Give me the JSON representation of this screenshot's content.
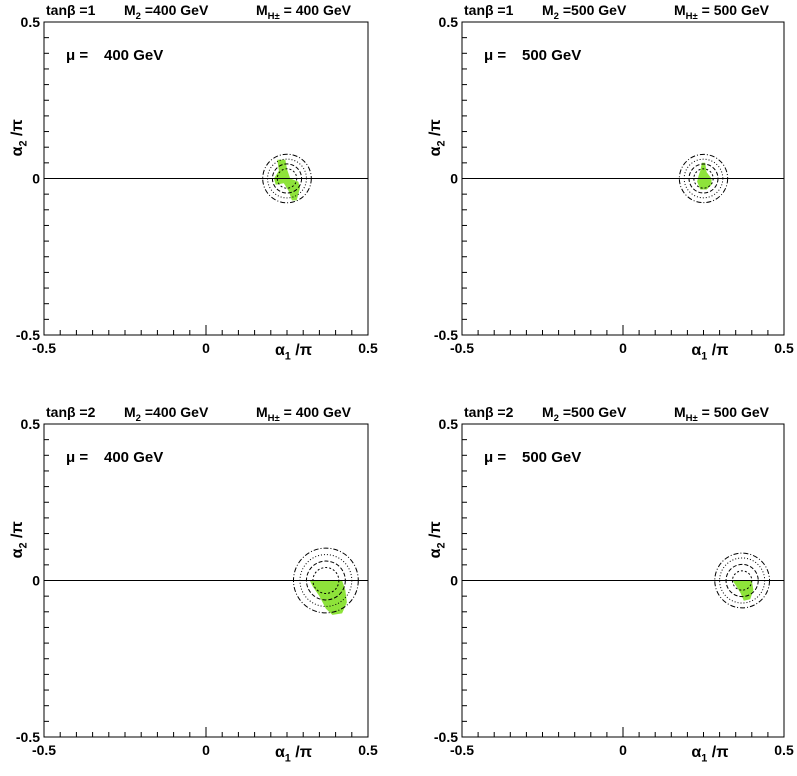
{
  "panels": [
    {
      "tanb_label": "tanβ =1",
      "m2_label": "M",
      "m2_sub": "2",
      "m2_value": " =400 GeV",
      "mh_label": "M",
      "mh_sub": "H±",
      "mh_value": " = 400 GeV",
      "mu_label": "μ =",
      "mu_value": "400 GeV",
      "xlabel_main": "α",
      "xlabel_sub": "1",
      "xlabel_rest": " /π",
      "ylabel_main": "α",
      "ylabel_sub": "2",
      "ylabel_rest": " /π",
      "xticks": [
        "-0.5",
        "0",
        "0.5"
      ],
      "yticks": [
        "0.5",
        "0",
        "-0.5"
      ]
    },
    {
      "tanb_label": "tanβ =1",
      "m2_label": "M",
      "m2_sub": "2",
      "m2_value": " =500 GeV",
      "mh_label": "M",
      "mh_sub": "H±",
      "mh_value": " = 500 GeV",
      "mu_label": "μ =",
      "mu_value": "500 GeV",
      "xlabel_main": "α",
      "xlabel_sub": "1",
      "xlabel_rest": " /π",
      "ylabel_main": "α",
      "ylabel_sub": "2",
      "ylabel_rest": " /π",
      "xticks": [
        "-0.5",
        "0",
        "0.5"
      ],
      "yticks": [
        "0.5",
        "0",
        "-0.5"
      ]
    },
    {
      "tanb_label": "tanβ =2",
      "m2_label": "M",
      "m2_sub": "2",
      "m2_value": " =400 GeV",
      "mh_label": "M",
      "mh_sub": "H±",
      "mh_value": " = 400 GeV",
      "mu_label": "μ =",
      "mu_value": "400 GeV",
      "xlabel_main": "α",
      "xlabel_sub": "1",
      "xlabel_rest": " /π",
      "ylabel_main": "α",
      "ylabel_sub": "2",
      "ylabel_rest": " /π",
      "xticks": [
        "-0.5",
        "0",
        "0.5"
      ],
      "yticks": [
        "0.5",
        "0",
        "-0.5"
      ]
    },
    {
      "tanb_label": "tanβ =2",
      "m2_label": "M",
      "m2_sub": "2",
      "m2_value": " =500 GeV",
      "mh_label": "M",
      "mh_sub": "H±",
      "mh_value": " = 500 GeV",
      "mu_label": "μ =",
      "mu_value": "500 GeV",
      "xlabel_main": "α",
      "xlabel_sub": "1",
      "xlabel_rest": " /π",
      "ylabel_main": "α",
      "ylabel_sub": "2",
      "ylabel_rest": " /π",
      "xticks": [
        "-0.5",
        "0",
        "0.5"
      ],
      "yticks": [
        "0.5",
        "0",
        "-0.5"
      ]
    }
  ],
  "colors": {
    "allowed_region": "#8ee33a",
    "axes": "#000000",
    "contours": "#000000"
  },
  "chart_data": [
    {
      "type": "scatter",
      "title": "tanβ =1  M2 =400 GeV  MH± = 400 GeV",
      "annotation": "μ = 400 GeV",
      "xlabel": "α1 /π",
      "ylabel": "α2 /π",
      "xlim": [
        -0.5,
        0.5
      ],
      "ylim": [
        -0.5,
        0.5
      ],
      "contour_center": [
        0.25,
        0.0
      ],
      "contour_radii": [
        0.03,
        0.045,
        0.06,
        0.075
      ],
      "region": [
        [
          0.22,
          0.06
        ],
        [
          0.245,
          0.06
        ],
        [
          0.25,
          0.03
        ],
        [
          0.26,
          0.0
        ],
        [
          0.285,
          -0.01
        ],
        [
          0.29,
          -0.03
        ],
        [
          0.28,
          -0.07
        ],
        [
          0.265,
          -0.07
        ],
        [
          0.255,
          -0.04
        ],
        [
          0.24,
          -0.015
        ],
        [
          0.215,
          -0.02
        ],
        [
          0.21,
          0.0
        ],
        [
          0.225,
          0.025
        ]
      ]
    },
    {
      "type": "scatter",
      "title": "tanβ =1  M2 =500 GeV  MH± = 500 GeV",
      "annotation": "μ = 500 GeV",
      "xlabel": "α1 /π",
      "ylabel": "α2 /π",
      "xlim": [
        -0.5,
        0.5
      ],
      "ylim": [
        -0.5,
        0.5
      ],
      "contour_center": [
        0.25,
        0.0
      ],
      "contour_radii": [
        0.03,
        0.045,
        0.06,
        0.075
      ],
      "region": [
        [
          0.245,
          0.05
        ],
        [
          0.255,
          0.05
        ],
        [
          0.26,
          0.02
        ],
        [
          0.275,
          0.0
        ],
        [
          0.275,
          -0.02
        ],
        [
          0.26,
          -0.035
        ],
        [
          0.24,
          -0.035
        ],
        [
          0.23,
          -0.01
        ],
        [
          0.235,
          0.01
        ],
        [
          0.24,
          0.025
        ]
      ]
    },
    {
      "type": "scatter",
      "title": "tanβ =2  M2 =400 GeV  MH± = 400 GeV",
      "annotation": "μ = 400 GeV",
      "xlabel": "α1 /π",
      "ylabel": "α2 /π",
      "xlim": [
        -0.5,
        0.5
      ],
      "ylim": [
        -0.5,
        0.5
      ],
      "contour_center": [
        0.37,
        0.0
      ],
      "contour_radii": [
        0.04,
        0.06,
        0.08,
        0.1
      ],
      "region": [
        [
          0.32,
          0.0
        ],
        [
          0.42,
          0.0
        ],
        [
          0.43,
          -0.03
        ],
        [
          0.435,
          -0.07
        ],
        [
          0.42,
          -0.105
        ],
        [
          0.39,
          -0.11
        ],
        [
          0.37,
          -0.09
        ],
        [
          0.35,
          -0.05
        ],
        [
          0.33,
          -0.02
        ]
      ]
    },
    {
      "type": "scatter",
      "title": "tanβ =2  M2 =500 GeV  MH± = 500 GeV",
      "annotation": "μ = 500 GeV",
      "xlabel": "α1 /π",
      "ylabel": "α2 /π",
      "xlim": [
        -0.5,
        0.5
      ],
      "ylim": [
        -0.5,
        0.5
      ],
      "contour_center": [
        0.37,
        0.0
      ],
      "contour_radii": [
        0.03,
        0.05,
        0.07,
        0.085
      ],
      "region": [
        [
          0.34,
          0.0
        ],
        [
          0.4,
          0.0
        ],
        [
          0.405,
          -0.03
        ],
        [
          0.395,
          -0.06
        ],
        [
          0.375,
          -0.065
        ],
        [
          0.365,
          -0.04
        ],
        [
          0.35,
          -0.015
        ]
      ]
    }
  ]
}
